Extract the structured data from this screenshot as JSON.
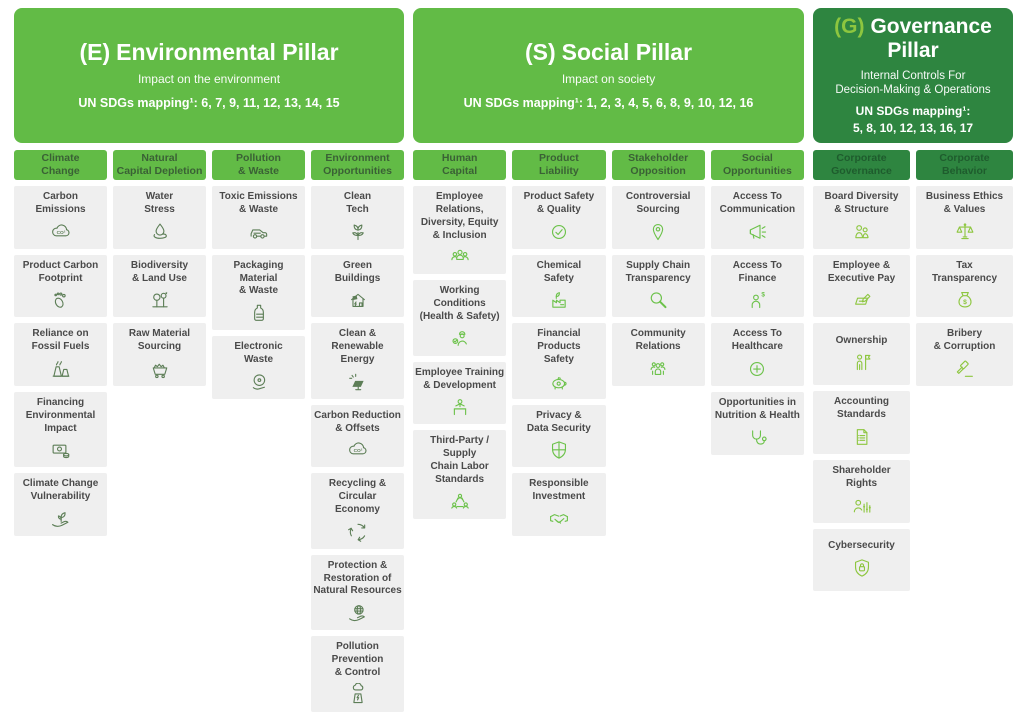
{
  "colors": {
    "bright_green": "#62bb46",
    "dark_green": "#2e8540",
    "governance_accent": "#8dc63f",
    "column_header_text": "#3a6135",
    "gov_column_header_text": "#1e5c2d",
    "card_background": "#efefef",
    "card_text": "#4a4a4a",
    "env_icon_color": "#5d7e57",
    "soc_icon_color": "#6cc24a",
    "gov_icon_color": "#8dc63f"
  },
  "pillars": [
    {
      "key": "environmental",
      "prefix": "(E)",
      "title": "Environmental Pillar",
      "subtitle": "Impact on the environment",
      "sdg": "UN SDGs mapping¹: 6, 7, 9, 11, 12, 13, 14, 15",
      "columns": [
        {
          "header": "Climate\nChange",
          "cards": [
            {
              "label": "Carbon\nEmissions",
              "icon": "co2-cloud-icon"
            },
            {
              "label": "Product Carbon\nFootprint",
              "icon": "footprint-icon"
            },
            {
              "label": "Reliance on\nFossil Fuels",
              "icon": "power-plant-icon"
            },
            {
              "label": "Financing\nEnvironmental\nImpact",
              "icon": "banknote-icon"
            },
            {
              "label": "Climate Change\nVulnerability",
              "icon": "hand-sprout-icon"
            }
          ]
        },
        {
          "header": "Natural\nCapital Depletion",
          "cards": [
            {
              "label": "Water\nStress",
              "icon": "water-drop-icon"
            },
            {
              "label": "Biodiversity\n& Land Use",
              "icon": "trees-icon"
            },
            {
              "label": "Raw Material\nSourcing",
              "icon": "mine-cart-icon"
            }
          ]
        },
        {
          "header": "Pollution\n& Waste",
          "cards": [
            {
              "label": "Toxic Emissions\n& Waste",
              "icon": "car-icon"
            },
            {
              "label": "Packaging Material\n& Waste",
              "icon": "bottle-icon"
            },
            {
              "label": "Electronic\nWaste",
              "icon": "disc-hand-icon"
            }
          ]
        },
        {
          "header": "Environment\nOpportunities",
          "cards": [
            {
              "label": "Clean\nTech",
              "icon": "plant-icon"
            },
            {
              "label": "Green\nBuildings",
              "icon": "solar-house-icon"
            },
            {
              "label": "Clean & Renewable\nEnergy",
              "icon": "solar-panel-icon"
            },
            {
              "label": "Carbon Reduction\n& Offsets",
              "icon": "co2-cloud-icon"
            },
            {
              "label": "Recycling & Circular\nEconomy",
              "icon": "recycle-icon"
            },
            {
              "label": "Protection &\nRestoration of\nNatural Resources",
              "icon": "hand-globe-icon"
            },
            {
              "label": "Pollution Prevention\n& Control",
              "icon": "factory-cloud-icon"
            }
          ]
        }
      ]
    },
    {
      "key": "social",
      "prefix": "(S)",
      "title": "Social Pillar",
      "subtitle": "Impact on society",
      "sdg": "UN SDGs mapping¹: 1, 2, 3, 4, 5, 6, 8, 9, 10, 12, 16",
      "columns": [
        {
          "header": "Human\nCapital",
          "cards": [
            {
              "label": "Employee Relations,\nDiversity, Equity\n& Inclusion",
              "icon": "people-group-icon"
            },
            {
              "label": "Working Conditions\n(Health & Safety)",
              "icon": "worker-check-icon"
            },
            {
              "label": "Employee Training\n& Development",
              "icon": "training-icon"
            },
            {
              "label": "Third-Party / Supply\nChain Labor\nStandards",
              "icon": "people-network-icon"
            }
          ]
        },
        {
          "header": "Product\nLiability",
          "cards": [
            {
              "label": "Product Safety\n& Quality",
              "icon": "check-circle-icon"
            },
            {
              "label": "Chemical\nSafety",
              "icon": "factory-leaf-icon"
            },
            {
              "label": "Financial Products\nSafety",
              "icon": "piggy-bank-icon"
            },
            {
              "label": "Privacy &\nData Security",
              "icon": "shield-icon"
            },
            {
              "label": "Responsible\nInvestment",
              "icon": "handshake-icon"
            }
          ]
        },
        {
          "header": "Stakeholder\nOpposition",
          "cards": [
            {
              "label": "Controversial\nSourcing",
              "icon": "map-pin-icon"
            },
            {
              "label": "Supply Chain\nTransparency",
              "icon": "magnifier-icon"
            },
            {
              "label": "Community\nRelations",
              "icon": "community-icon"
            }
          ]
        },
        {
          "header": "Social\nOpportunities",
          "cards": [
            {
              "label": "Access To\nCommunication",
              "icon": "megaphone-icon"
            },
            {
              "label": "Access To\nFinance",
              "icon": "person-dollar-icon"
            },
            {
              "label": "Access To\nHealthcare",
              "icon": "plus-circle-icon"
            },
            {
              "label": "Opportunities in\nNutrition & Health",
              "icon": "stethoscope-icon"
            }
          ]
        }
      ]
    },
    {
      "key": "governance",
      "prefix": "(G)",
      "title": "Governance Pillar",
      "subtitle": "Internal Controls For\nDecision-Making & Operations",
      "sdg": "UN SDGs mapping¹:\n5, 8, 10, 12, 13, 16, 17",
      "columns": [
        {
          "header": "Corporate\nGovernance",
          "cards": [
            {
              "label": "Board Diversity\n& Structure",
              "icon": "two-people-icon"
            },
            {
              "label": "Employee &\nExecutive Pay",
              "icon": "pay-check-icon"
            },
            {
              "label": "Ownership",
              "icon": "person-flag-icon"
            },
            {
              "label": "Accounting\nStandards",
              "icon": "document-icon"
            },
            {
              "label": "Shareholder\nRights",
              "icon": "person-sliders-icon"
            },
            {
              "label": "Cybersecurity",
              "icon": "shield-lock-icon"
            }
          ]
        },
        {
          "header": "Corporate\nBehavior",
          "cards": [
            {
              "label": "Business Ethics\n& Values",
              "icon": "scales-icon"
            },
            {
              "label": "Tax\nTransparency",
              "icon": "money-bag-icon"
            },
            {
              "label": "Bribery\n& Corruption",
              "icon": "gavel-icon"
            }
          ]
        }
      ]
    }
  ]
}
